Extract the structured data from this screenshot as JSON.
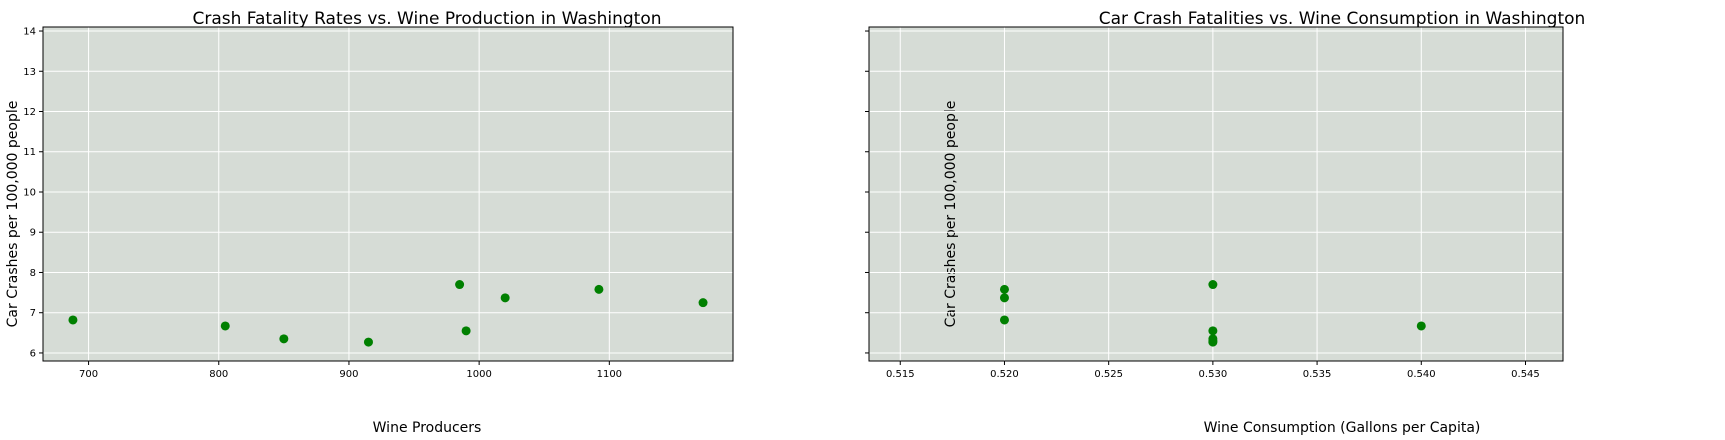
{
  "colors": {
    "plot_background": "#d6dcd6",
    "grid": "#ffffff",
    "marker": "#008000",
    "axis": "#000000"
  },
  "chart_data": [
    {
      "type": "scatter",
      "title": "Crash Fatality Rates vs. Wine Production in Washington",
      "xlabel": "Wine Producers",
      "ylabel": "Car Crashes per 100,000 people",
      "xlim": [
        665,
        1195
      ],
      "ylim": [
        5.8,
        14.1
      ],
      "xticks": [
        700,
        800,
        900,
        1000,
        1100
      ],
      "yticks": [
        6,
        7,
        8,
        9,
        10,
        11,
        12,
        13,
        14
      ],
      "xtick_labels": [
        "700",
        "800",
        "900",
        "1000",
        "1100"
      ],
      "ytick_labels": [
        "6",
        "7",
        "8",
        "9",
        "10",
        "11",
        "12",
        "13",
        "14"
      ],
      "grid": true,
      "x": [
        688,
        805,
        850,
        915,
        985,
        990,
        1020,
        1092,
        1172
      ],
      "y": [
        6.82,
        6.67,
        6.35,
        6.27,
        7.7,
        6.55,
        7.37,
        7.58,
        7.25
      ]
    },
    {
      "type": "scatter",
      "title": "Car Crash Fatalities vs. Wine Consumption in Washington",
      "xlabel": "Wine Consumption (Gallons per Capita)",
      "ylabel": "Car Crashes per 100,000 people",
      "xlim": [
        0.5135,
        0.5468
      ],
      "ylim": [
        5.8,
        14.1
      ],
      "xticks": [
        0.515,
        0.52,
        0.525,
        0.53,
        0.535,
        0.54,
        0.545
      ],
      "yticks": [
        6,
        7,
        8,
        9,
        10,
        11,
        12,
        13,
        14
      ],
      "xtick_labels": [
        "0.515",
        "0.520",
        "0.525",
        "0.530",
        "0.535",
        "0.540",
        "0.545"
      ],
      "ytick_labels": [],
      "grid": true,
      "x": [
        0.52,
        0.52,
        0.52,
        0.53,
        0.53,
        0.53,
        0.53,
        0.53,
        0.54
      ],
      "y": [
        7.58,
        7.37,
        6.82,
        7.7,
        6.55,
        6.35,
        6.3,
        6.27,
        6.67
      ]
    }
  ]
}
